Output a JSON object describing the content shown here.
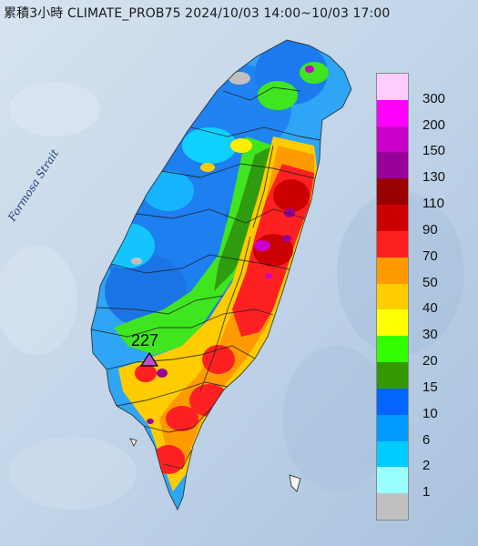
{
  "title": "累積3小時 CLIMATE_PROB75 2024/10/03 14:00~10/03 17:00",
  "strait_label": "Formosa Strait",
  "station": {
    "value": "227",
    "marker_color": "#b84fd0"
  },
  "legend": [
    {
      "label": "300",
      "color": "#ffccff"
    },
    {
      "label": "200",
      "color": "#ff00ff"
    },
    {
      "label": "150",
      "color": "#cc00cc"
    },
    {
      "label": "130",
      "color": "#990099"
    },
    {
      "label": "110",
      "color": "#990000"
    },
    {
      "label": "90",
      "color": "#cc0000"
    },
    {
      "label": "70",
      "color": "#ff2020"
    },
    {
      "label": "50",
      "color": "#ff9900"
    },
    {
      "label": "40",
      "color": "#ffcc00"
    },
    {
      "label": "30",
      "color": "#ffff00"
    },
    {
      "label": "20",
      "color": "#33ff00"
    },
    {
      "label": "15",
      "color": "#339900"
    },
    {
      "label": "10",
      "color": "#0066ff"
    },
    {
      "label": "6",
      "color": "#0099ff"
    },
    {
      "label": "2",
      "color": "#00ccff"
    },
    {
      "label": "1",
      "color": "#99ffff"
    },
    {
      "label": "",
      "color": "#c0c0c0"
    }
  ]
}
